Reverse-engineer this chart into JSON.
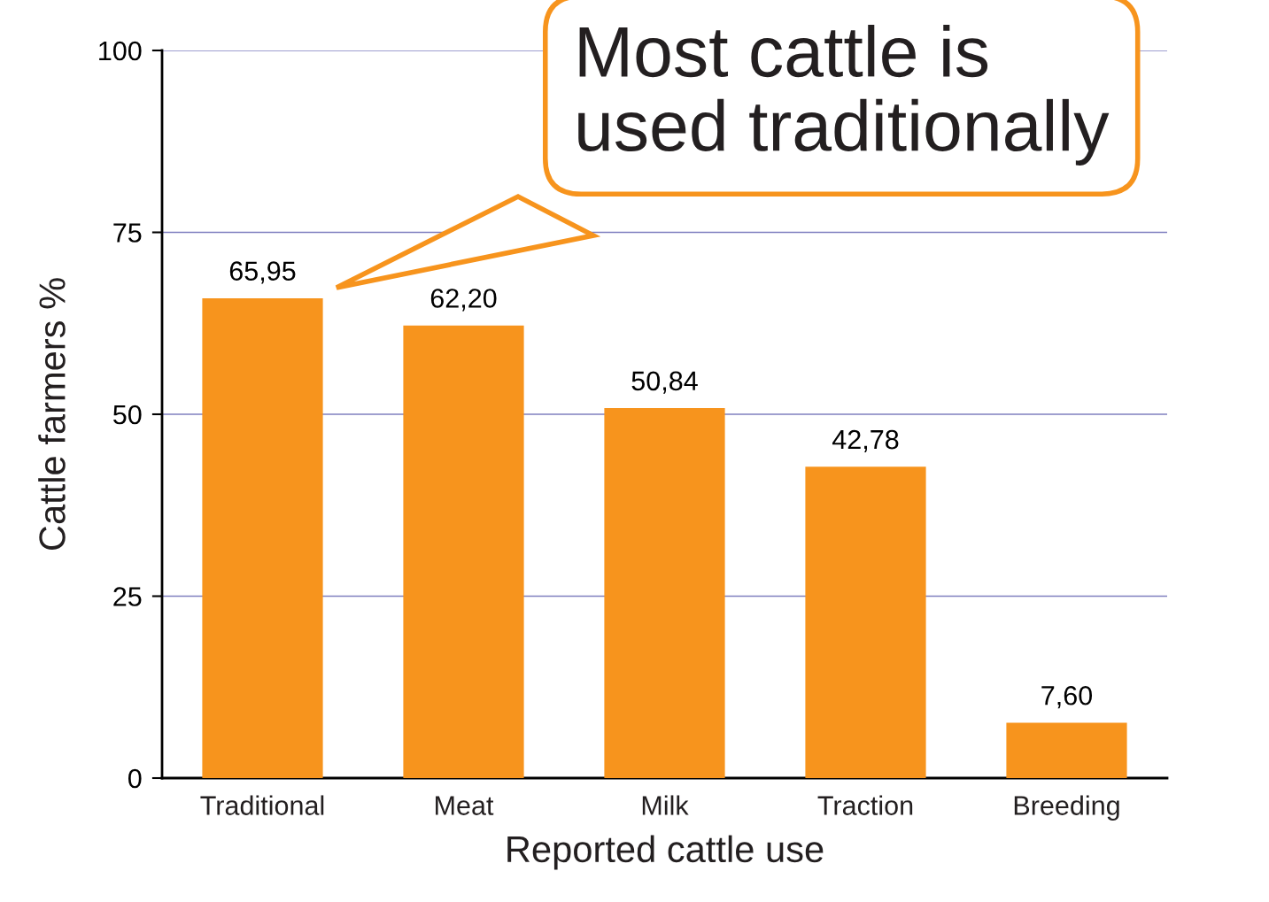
{
  "chart_data": {
    "type": "bar",
    "categories": [
      "Traditional",
      "Meat",
      "Milk",
      "Traction",
      "Breeding"
    ],
    "values": [
      65.95,
      62.2,
      50.84,
      42.78,
      7.6
    ],
    "value_labels": [
      "65,95",
      "62,20",
      "50,84",
      "42,78",
      "7,60"
    ],
    "color": "#f7941d",
    "xlabel": "Reported cattle use",
    "ylabel": "Cattle farmers %",
    "ylim": [
      0,
      100
    ],
    "yticks": [
      0,
      25,
      50,
      75,
      100
    ],
    "grid": "y",
    "annotations": [
      "Most cattle is\nused traditionally"
    ]
  }
}
